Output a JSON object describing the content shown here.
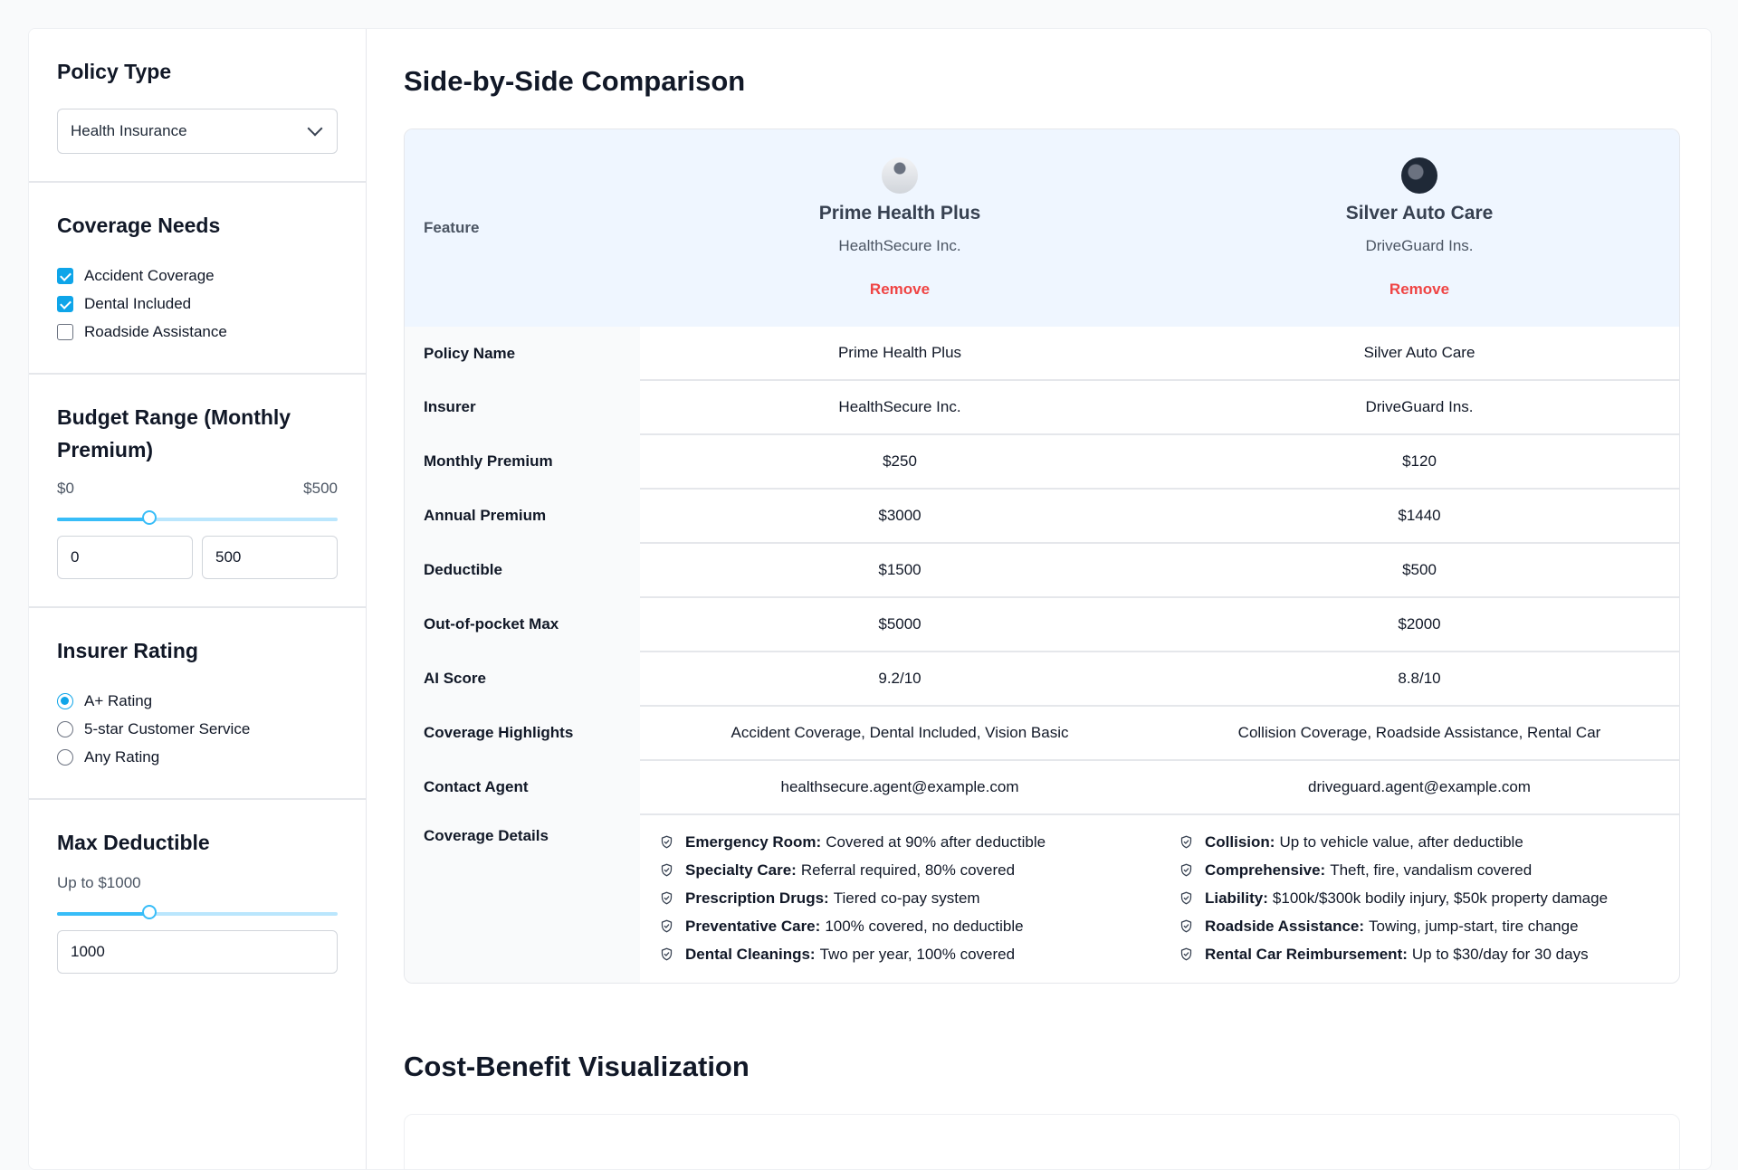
{
  "sidebar": {
    "policy_type": {
      "title": "Policy Type",
      "selected": "Health Insurance"
    },
    "coverage": {
      "title": "Coverage Needs",
      "options": [
        {
          "label": "Accident Coverage",
          "checked": true
        },
        {
          "label": "Dental Included",
          "checked": true
        },
        {
          "label": "Roadside Assistance",
          "checked": false
        }
      ]
    },
    "budget": {
      "title": "Budget Range (Monthly Premium)",
      "min_label": "$0",
      "max_label": "$500",
      "slider_fraction": 0.33,
      "min_value": "0",
      "max_value": "500"
    },
    "rating": {
      "title": "Insurer Rating",
      "options": [
        {
          "label": "A+ Rating",
          "selected": true
        },
        {
          "label": "5-star Customer Service",
          "selected": false
        },
        {
          "label": "Any Rating",
          "selected": false
        }
      ]
    },
    "deductible": {
      "title": "Max Deductible",
      "hint": "Up to $1000",
      "slider_fraction": 0.33,
      "value": "1000"
    }
  },
  "main": {
    "comparison_title": "Side-by-Side Comparison",
    "feature_header": "Feature",
    "remove_label": "Remove",
    "policies": [
      {
        "name": "Prime Health Plus",
        "insurer": "HealthSecure Inc."
      },
      {
        "name": "Silver Auto Care",
        "insurer": "DriveGuard Ins."
      }
    ],
    "rows": [
      {
        "label": "Policy Name",
        "values": [
          "Prime Health Plus",
          "Silver Auto Care"
        ]
      },
      {
        "label": "Insurer",
        "values": [
          "HealthSecure Inc.",
          "DriveGuard Ins."
        ]
      },
      {
        "label": "Monthly Premium",
        "values": [
          "$250",
          "$120"
        ]
      },
      {
        "label": "Annual Premium",
        "values": [
          "$3000",
          "$1440"
        ]
      },
      {
        "label": "Deductible",
        "values": [
          "$1500",
          "$500"
        ]
      },
      {
        "label": "Out-of-pocket Max",
        "values": [
          "$5000",
          "$2000"
        ]
      },
      {
        "label": "AI Score",
        "values": [
          "9.2/10",
          "8.8/10"
        ]
      },
      {
        "label": "Coverage Highlights",
        "values": [
          "Accident Coverage, Dental Included, Vision Basic",
          "Collision Coverage, Roadside Assistance, Rental Car"
        ]
      },
      {
        "label": "Contact Agent",
        "values": [
          "healthsecure.agent@example.com",
          "driveguard.agent@example.com"
        ]
      }
    ],
    "details_label": "Coverage Details",
    "details": [
      [
        {
          "k": "Emergency Room:",
          "v": "Covered at 90% after deductible"
        },
        {
          "k": "Specialty Care:",
          "v": "Referral required, 80% covered"
        },
        {
          "k": "Prescription Drugs:",
          "v": "Tiered co-pay system"
        },
        {
          "k": "Preventative Care:",
          "v": "100% covered, no deductible"
        },
        {
          "k": "Dental Cleanings:",
          "v": "Two per year, 100% covered"
        }
      ],
      [
        {
          "k": "Collision:",
          "v": "Up to vehicle value, after deductible"
        },
        {
          "k": "Comprehensive:",
          "v": "Theft, fire, vandalism covered"
        },
        {
          "k": "Liability:",
          "v": "$100k/$300k bodily injury, $50k property damage"
        },
        {
          "k": "Roadside Assistance:",
          "v": "Towing, jump-start, tire change"
        },
        {
          "k": "Rental Car Reimbursement:",
          "v": "Up to $30/day for 30 days"
        }
      ]
    ],
    "visualization_title": "Cost-Benefit Visualization"
  },
  "colors": {
    "accent": "#0ea5e9",
    "remove": "#ef4444",
    "header_bg": "#eff6ff"
  }
}
